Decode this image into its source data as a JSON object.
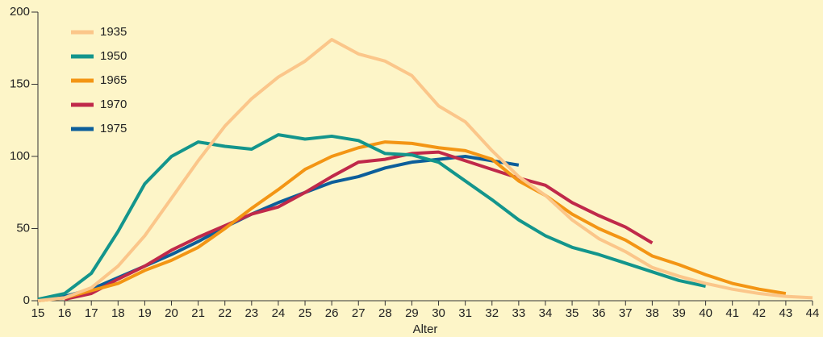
{
  "chart_data": {
    "type": "line",
    "x_label": "Alter",
    "x": [
      15,
      16,
      17,
      18,
      19,
      20,
      21,
      22,
      23,
      24,
      25,
      26,
      27,
      28,
      29,
      30,
      31,
      32,
      33,
      34,
      35,
      36,
      37,
      38,
      39,
      40,
      41,
      42,
      43,
      44
    ],
    "xlim": [
      15,
      44
    ],
    "xticks": [
      15,
      16,
      17,
      18,
      19,
      20,
      21,
      22,
      23,
      24,
      25,
      26,
      27,
      28,
      29,
      30,
      31,
      32,
      33,
      34,
      35,
      36,
      37,
      38,
      39,
      40,
      41,
      42,
      43,
      44
    ],
    "ylim": [
      0,
      200
    ],
    "yticks": [
      0,
      50,
      100,
      150,
      200
    ],
    "legend": "top-left",
    "series": [
      {
        "name": "1935",
        "color": "#fbc68a",
        "values": [
          0,
          2,
          9,
          24,
          45,
          71,
          97,
          121,
          140,
          155,
          166,
          181,
          171,
          166,
          156,
          135,
          124,
          104,
          86,
          73,
          56,
          43,
          34,
          23,
          17,
          12,
          8,
          5,
          3,
          2
        ]
      },
      {
        "name": "1950",
        "color": "#13958c",
        "values": [
          1,
          5,
          19,
          48,
          81,
          100,
          110,
          107,
          105,
          115,
          112,
          114,
          111,
          102,
          101,
          96,
          83,
          70,
          56,
          45,
          37,
          32,
          26,
          20,
          14,
          10,
          null,
          null,
          null,
          null
        ]
      },
      {
        "name": "1965",
        "color": "#f39514",
        "values": [
          0,
          2,
          7,
          12,
          21,
          28,
          37,
          50,
          64,
          77,
          91,
          100,
          106,
          110,
          109,
          106,
          104,
          98,
          83,
          73,
          60,
          50,
          42,
          31,
          25,
          18,
          12,
          8,
          5,
          null
        ]
      },
      {
        "name": "1970",
        "color": "#c0294a",
        "values": [
          null,
          1,
          5,
          15,
          24,
          35,
          44,
          52,
          60,
          65,
          75,
          86,
          96,
          98,
          102,
          103,
          97,
          91,
          85,
          80,
          68,
          59,
          51,
          40,
          null,
          null,
          null,
          null,
          null,
          null
        ]
      },
      {
        "name": "1975",
        "color": "#0c5e9a",
        "values": [
          0,
          3,
          8,
          16,
          24,
          32,
          41,
          51,
          60,
          68,
          75,
          82,
          86,
          92,
          96,
          98,
          100,
          97,
          94,
          null,
          null,
          null,
          null,
          null,
          null,
          null,
          null,
          null,
          null,
          null
        ]
      }
    ]
  }
}
